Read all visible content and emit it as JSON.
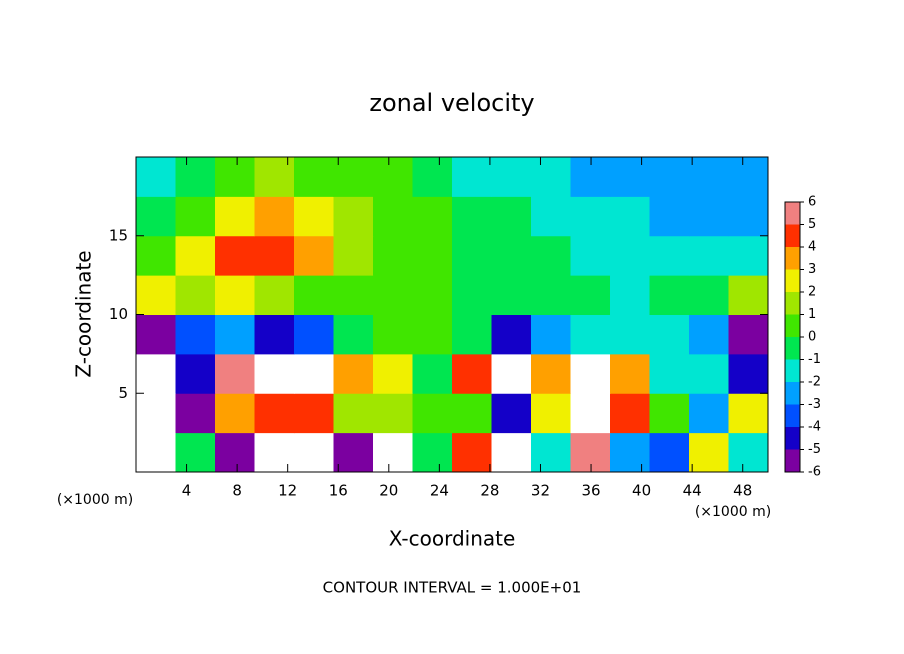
{
  "chart_data": {
    "type": "contour",
    "title": "zonal velocity",
    "xlabel": "X-coordinate",
    "ylabel": "Z-coordinate",
    "xunit": "(×1000 m)",
    "yunit": "(×1000 m)",
    "footer": "CONTOUR INTERVAL = 1.000E+01",
    "xlim": [
      0,
      50
    ],
    "ylim": [
      0,
      20
    ],
    "xticks": [
      4,
      8,
      12,
      16,
      20,
      24,
      28,
      32,
      36,
      40,
      44,
      48
    ],
    "yticks": [
      5,
      10,
      15
    ],
    "colorbar_ticks": [
      -6,
      -5,
      -4,
      -3,
      -2,
      -1,
      0,
      1,
      2,
      3,
      4,
      5,
      6
    ],
    "colors": [
      "#7b00a0",
      "#1400c8",
      "#0050ff",
      "#00a0ff",
      "#00e6d2",
      "#00e650",
      "#40e600",
      "#a0e600",
      "#f0f000",
      "#ffa000",
      "#ff3000",
      "#f08080"
    ],
    "z": [
      [
        8,
        0,
        -5,
        8,
        8,
        -6,
        8,
        0,
        5,
        8,
        -1,
        6,
        -2,
        -3,
        3,
        -1
      ],
      [
        8,
        -5,
        4,
        5,
        5,
        2,
        2,
        1,
        1,
        -4,
        3,
        7,
        5,
        1,
        -2,
        3
      ],
      [
        8,
        -4,
        6,
        9,
        9,
        4,
        3,
        0,
        5,
        8,
        4,
        8,
        4,
        -1,
        -1,
        -4
      ],
      [
        -5,
        -3,
        -2,
        -4,
        -3,
        0,
        0.5,
        1,
        0,
        -4,
        -2,
        -1,
        -1,
        -1,
        -2,
        -5
      ],
      [
        3,
        2,
        2.5,
        2,
        1,
        0.5,
        0.5,
        0.5,
        0,
        0,
        -0.5,
        -0.5,
        -1,
        -0.5,
        0,
        1.5
      ],
      [
        1,
        3,
        4.5,
        5,
        3.5,
        2,
        1,
        0.5,
        0,
        -0.5,
        -0.5,
        -1,
        -1,
        -1.5,
        -1.5,
        -1.5
      ],
      [
        -0.5,
        1,
        2.5,
        3.5,
        3,
        1.5,
        1,
        0.5,
        0,
        -0.5,
        -1,
        -1.5,
        -1.5,
        -2,
        -2,
        -2
      ],
      [
        -1,
        0,
        1,
        1.5,
        1,
        1,
        0.5,
        0,
        -1,
        -1.5,
        -1.5,
        -2,
        -2,
        -2,
        -2,
        -2
      ]
    ]
  }
}
